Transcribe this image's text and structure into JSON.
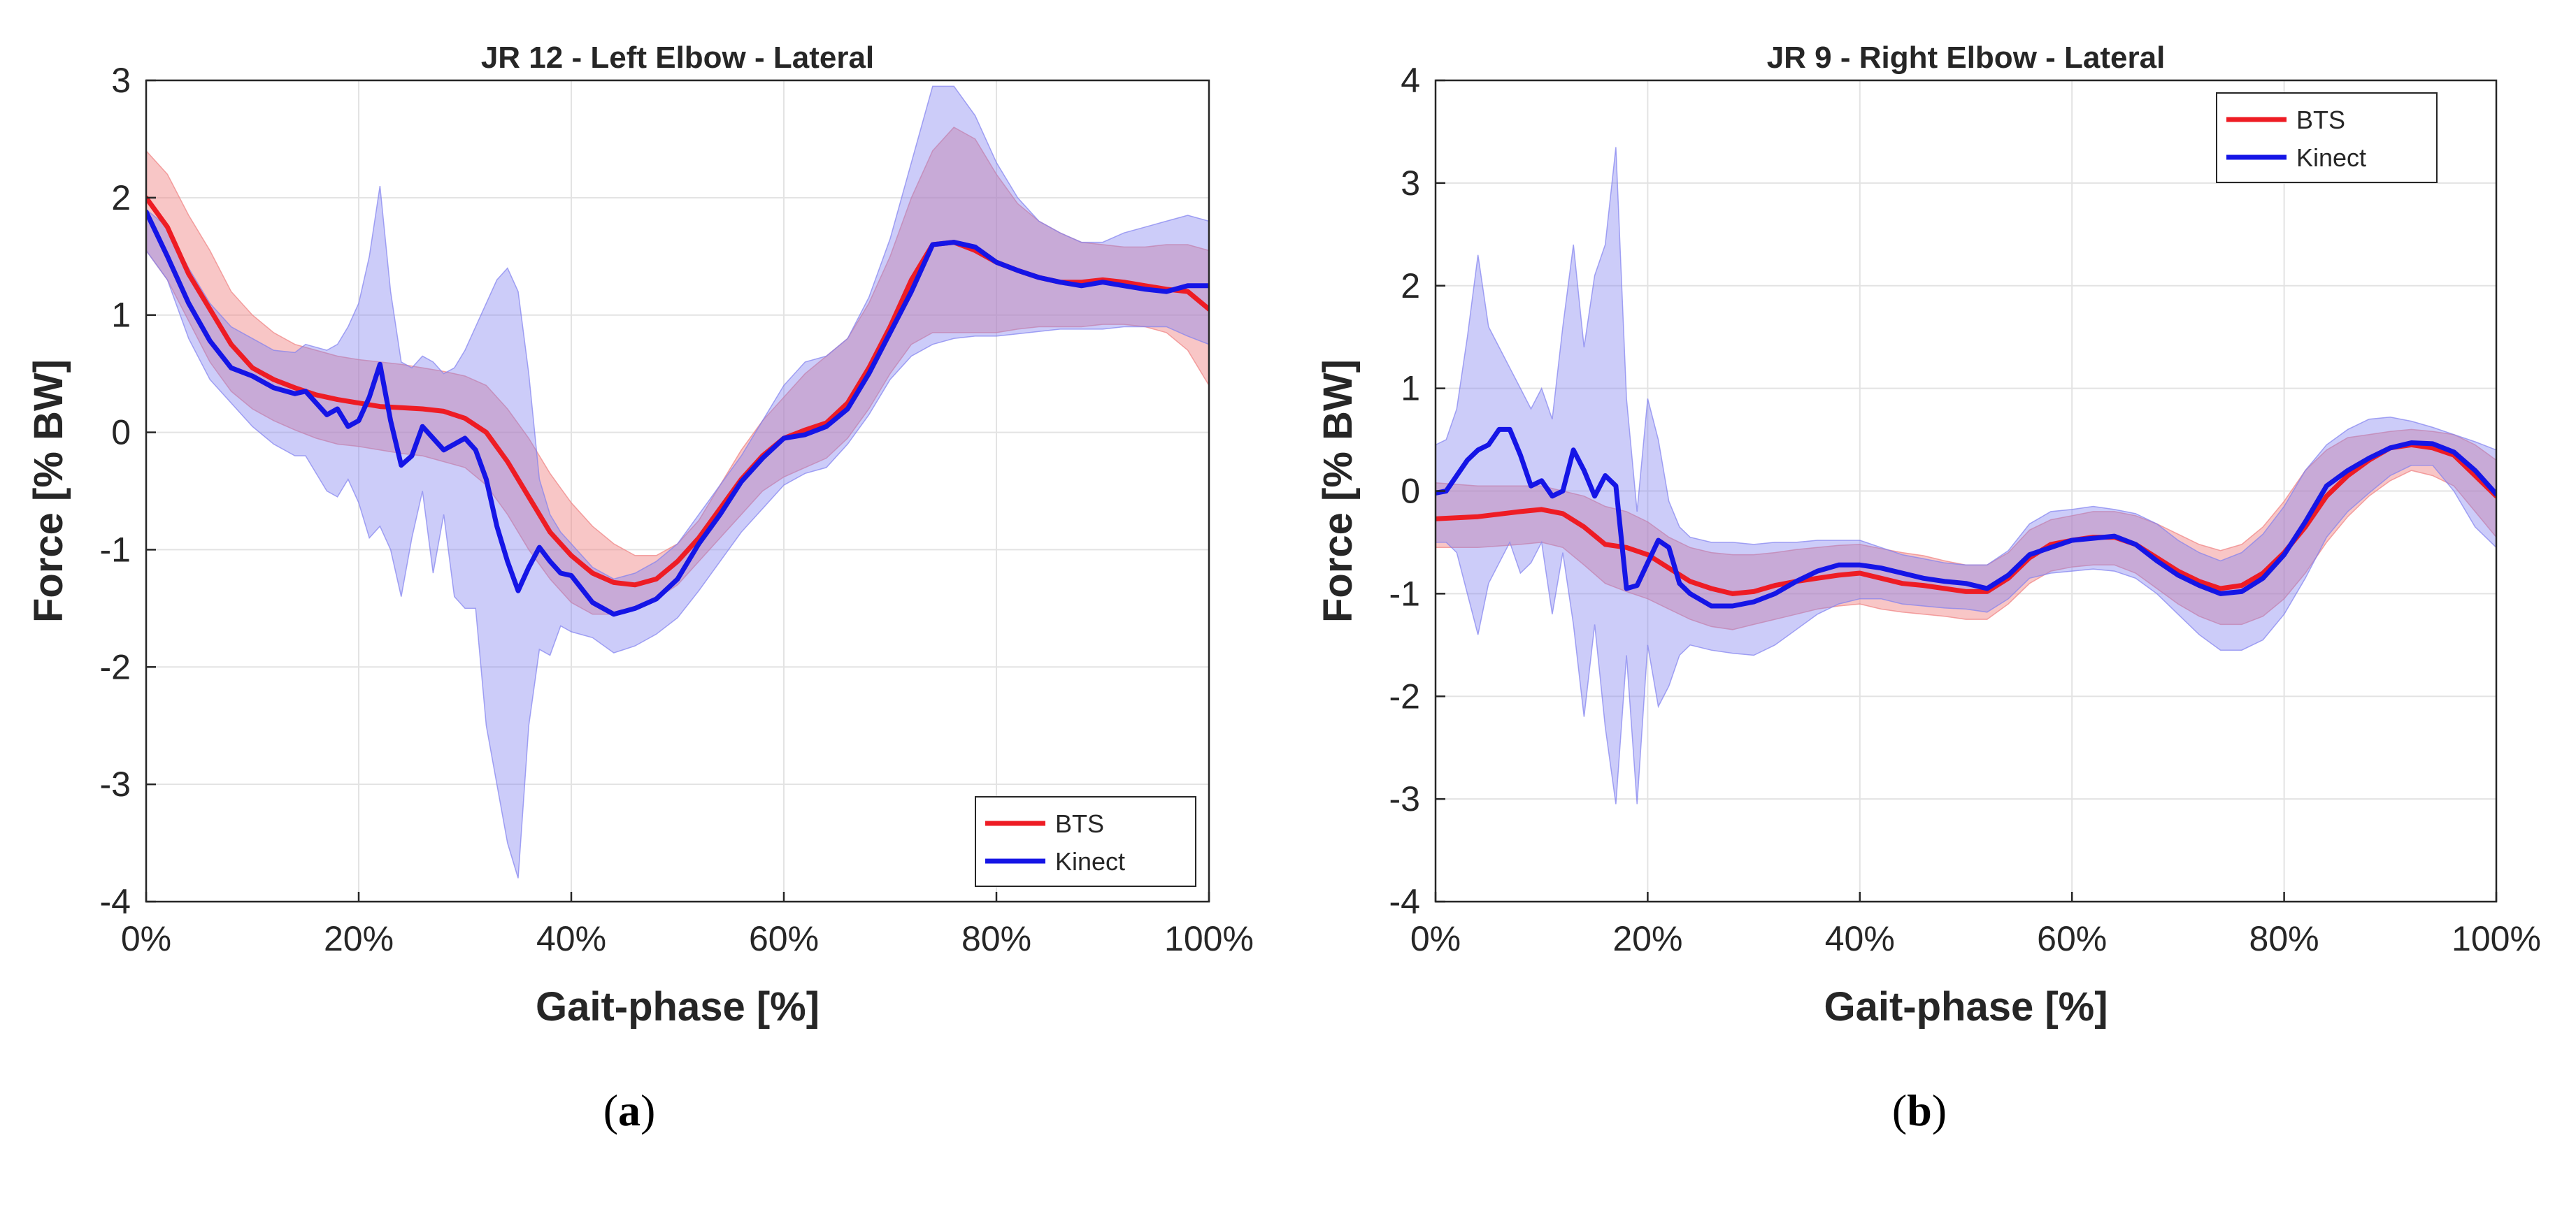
{
  "chart_data": [
    {
      "type": "line",
      "title": "JR 12 - Left Elbow - Lateral",
      "xlabel": "Gait-phase [%]",
      "ylabel": "Force [% BW]",
      "xlim": [
        0,
        100
      ],
      "ylim": [
        -4,
        3
      ],
      "xticks": [
        0,
        20,
        40,
        60,
        80,
        100
      ],
      "xtick_labels": [
        "0%",
        "20%",
        "40%",
        "60%",
        "80%",
        "100%"
      ],
      "yticks": [
        -4,
        -3,
        -2,
        -1,
        0,
        1,
        2,
        3
      ],
      "ytick_labels": [
        "-4",
        "-3",
        "-2",
        "-1",
        "0",
        "1",
        "2",
        "3"
      ],
      "grid": true,
      "legend_position": "bottom-right",
      "caption_prefix": "(",
      "caption_letter": "a",
      "caption_suffix": ")",
      "series": [
        {
          "name": "BTS",
          "color": "#ee1c24",
          "band_color": "#f08080",
          "x": [
            0,
            2,
            4,
            6,
            8,
            10,
            12,
            14,
            16,
            18,
            20,
            22,
            24,
            26,
            28,
            30,
            32,
            34,
            36,
            38,
            40,
            42,
            44,
            46,
            48,
            50,
            52,
            54,
            56,
            58,
            60,
            62,
            64,
            66,
            68,
            70,
            72,
            74,
            76,
            78,
            80,
            82,
            84,
            86,
            88,
            90,
            92,
            94,
            96,
            98,
            100
          ],
          "values": [
            2.0,
            1.75,
            1.35,
            1.05,
            0.75,
            0.55,
            0.45,
            0.38,
            0.32,
            0.28,
            0.25,
            0.22,
            0.21,
            0.2,
            0.18,
            0.12,
            0.0,
            -0.25,
            -0.55,
            -0.85,
            -1.05,
            -1.2,
            -1.28,
            -1.3,
            -1.25,
            -1.1,
            -0.9,
            -0.65,
            -0.4,
            -0.2,
            -0.05,
            0.02,
            0.08,
            0.25,
            0.55,
            0.9,
            1.3,
            1.6,
            1.62,
            1.55,
            1.45,
            1.38,
            1.32,
            1.28,
            1.28,
            1.3,
            1.28,
            1.25,
            1.22,
            1.2,
            1.05
          ],
          "upper": [
            2.4,
            2.2,
            1.85,
            1.55,
            1.2,
            1.0,
            0.85,
            0.75,
            0.7,
            0.65,
            0.62,
            0.6,
            0.58,
            0.55,
            0.52,
            0.48,
            0.4,
            0.2,
            -0.05,
            -0.35,
            -0.6,
            -0.8,
            -0.95,
            -1.05,
            -1.05,
            -0.95,
            -0.75,
            -0.45,
            -0.15,
            0.1,
            0.3,
            0.5,
            0.65,
            0.8,
            1.1,
            1.5,
            2.0,
            2.4,
            2.6,
            2.5,
            2.2,
            1.95,
            1.8,
            1.7,
            1.62,
            1.6,
            1.58,
            1.58,
            1.6,
            1.6,
            1.55
          ],
          "lower": [
            1.55,
            1.3,
            0.95,
            0.6,
            0.35,
            0.2,
            0.1,
            0.02,
            -0.05,
            -0.1,
            -0.12,
            -0.15,
            -0.18,
            -0.2,
            -0.25,
            -0.3,
            -0.45,
            -0.7,
            -1.0,
            -1.25,
            -1.45,
            -1.55,
            -1.55,
            -1.5,
            -1.42,
            -1.3,
            -1.1,
            -0.9,
            -0.7,
            -0.5,
            -0.38,
            -0.3,
            -0.22,
            -0.05,
            0.2,
            0.5,
            0.75,
            0.85,
            0.85,
            0.85,
            0.85,
            0.88,
            0.9,
            0.9,
            0.9,
            0.92,
            0.92,
            0.9,
            0.85,
            0.7,
            0.4
          ]
        },
        {
          "name": "Kinect",
          "color": "#1515e6",
          "band_color": "#8080f0",
          "x": [
            0,
            2,
            4,
            6,
            8,
            10,
            12,
            14,
            15,
            17,
            18,
            19,
            20,
            21,
            22,
            23,
            24,
            25,
            26,
            27,
            28,
            29,
            30,
            31,
            32,
            33,
            34,
            35,
            36,
            37,
            38,
            39,
            40,
            42,
            44,
            46,
            48,
            50,
            52,
            54,
            56,
            58,
            60,
            62,
            64,
            66,
            68,
            70,
            72,
            74,
            76,
            78,
            80,
            82,
            84,
            86,
            88,
            90,
            92,
            94,
            96,
            98,
            100
          ],
          "values": [
            1.88,
            1.5,
            1.1,
            0.78,
            0.55,
            0.48,
            0.38,
            0.33,
            0.35,
            0.15,
            0.2,
            0.05,
            0.1,
            0.3,
            0.58,
            0.1,
            -0.28,
            -0.2,
            0.05,
            -0.05,
            -0.15,
            -0.1,
            -0.05,
            -0.15,
            -0.4,
            -0.8,
            -1.1,
            -1.35,
            -1.15,
            -0.98,
            -1.1,
            -1.2,
            -1.22,
            -1.45,
            -1.55,
            -1.5,
            -1.42,
            -1.25,
            -0.95,
            -0.7,
            -0.42,
            -0.22,
            -0.05,
            -0.02,
            0.05,
            0.2,
            0.5,
            0.85,
            1.2,
            1.6,
            1.62,
            1.58,
            1.45,
            1.38,
            1.32,
            1.28,
            1.25,
            1.28,
            1.25,
            1.22,
            1.2,
            1.25,
            1.25
          ],
          "upper": [
            1.9,
            1.75,
            1.4,
            1.1,
            0.9,
            0.8,
            0.7,
            0.68,
            0.75,
            0.7,
            0.75,
            0.9,
            1.1,
            1.5,
            2.1,
            1.2,
            0.6,
            0.55,
            0.65,
            0.6,
            0.5,
            0.55,
            0.7,
            0.9,
            1.1,
            1.3,
            1.4,
            1.2,
            0.5,
            -0.4,
            -0.7,
            -0.85,
            -0.95,
            -1.15,
            -1.25,
            -1.2,
            -1.1,
            -0.95,
            -0.7,
            -0.45,
            -0.2,
            0.1,
            0.4,
            0.6,
            0.65,
            0.8,
            1.15,
            1.65,
            2.3,
            2.95,
            2.95,
            2.7,
            2.3,
            2.0,
            1.8,
            1.7,
            1.62,
            1.62,
            1.7,
            1.75,
            1.8,
            1.85,
            1.8
          ],
          "lower": [
            1.55,
            1.3,
            0.8,
            0.45,
            0.25,
            0.05,
            -0.1,
            -0.2,
            -0.2,
            -0.5,
            -0.55,
            -0.4,
            -0.6,
            -0.9,
            -0.8,
            -1.0,
            -1.4,
            -0.9,
            -0.5,
            -1.2,
            -0.7,
            -1.4,
            -1.5,
            -1.5,
            -2.5,
            -3.0,
            -3.5,
            -3.8,
            -2.5,
            -1.85,
            -1.9,
            -1.65,
            -1.7,
            -1.75,
            -1.88,
            -1.82,
            -1.72,
            -1.58,
            -1.35,
            -1.1,
            -0.85,
            -0.65,
            -0.45,
            -0.35,
            -0.3,
            -0.1,
            0.15,
            0.45,
            0.65,
            0.75,
            0.8,
            0.82,
            0.82,
            0.84,
            0.86,
            0.88,
            0.88,
            0.88,
            0.9,
            0.9,
            0.9,
            0.82,
            0.75
          ]
        }
      ]
    },
    {
      "type": "line",
      "title": "JR 9 - Right Elbow - Lateral",
      "xlabel": "Gait-phase [%]",
      "ylabel": "Force [% BW]",
      "xlim": [
        0,
        100
      ],
      "ylim": [
        -4,
        4
      ],
      "xticks": [
        0,
        20,
        40,
        60,
        80,
        100
      ],
      "xtick_labels": [
        "0%",
        "20%",
        "40%",
        "60%",
        "80%",
        "100%"
      ],
      "yticks": [
        -4,
        -3,
        -2,
        -1,
        0,
        1,
        2,
        3,
        4
      ],
      "ytick_labels": [
        "-4",
        "-3",
        "-2",
        "-1",
        "0",
        "1",
        "2",
        "3",
        "4"
      ],
      "grid": true,
      "legend_position": "top-right",
      "caption_prefix": "(",
      "caption_letter": "b",
      "caption_suffix": ")",
      "series": [
        {
          "name": "BTS",
          "color": "#ee1c24",
          "band_color": "#f08080",
          "x": [
            0,
            4,
            8,
            10,
            12,
            14,
            16,
            18,
            20,
            22,
            24,
            26,
            28,
            30,
            32,
            34,
            36,
            38,
            40,
            42,
            44,
            46,
            48,
            50,
            52,
            54,
            56,
            58,
            60,
            62,
            64,
            66,
            68,
            70,
            72,
            74,
            76,
            78,
            80,
            82,
            84,
            86,
            88,
            90,
            92,
            94,
            96,
            98,
            100
          ],
          "values": [
            -0.27,
            -0.25,
            -0.2,
            -0.18,
            -0.22,
            -0.35,
            -0.52,
            -0.55,
            -0.62,
            -0.75,
            -0.88,
            -0.95,
            -1.0,
            -0.98,
            -0.92,
            -0.88,
            -0.85,
            -0.82,
            -0.8,
            -0.85,
            -0.9,
            -0.92,
            -0.95,
            -0.98,
            -0.98,
            -0.85,
            -0.65,
            -0.52,
            -0.48,
            -0.45,
            -0.45,
            -0.52,
            -0.65,
            -0.78,
            -0.88,
            -0.95,
            -0.92,
            -0.8,
            -0.6,
            -0.35,
            -0.05,
            0.15,
            0.3,
            0.42,
            0.45,
            0.42,
            0.35,
            0.15,
            -0.05
          ],
          "upper": [
            0.08,
            0.05,
            0.05,
            0.05,
            0.0,
            -0.05,
            -0.15,
            -0.2,
            -0.3,
            -0.45,
            -0.55,
            -0.6,
            -0.62,
            -0.62,
            -0.6,
            -0.57,
            -0.55,
            -0.53,
            -0.52,
            -0.56,
            -0.6,
            -0.63,
            -0.68,
            -0.72,
            -0.72,
            -0.6,
            -0.38,
            -0.28,
            -0.24,
            -0.2,
            -0.2,
            -0.24,
            -0.32,
            -0.42,
            -0.52,
            -0.58,
            -0.52,
            -0.35,
            -0.1,
            0.2,
            0.4,
            0.52,
            0.55,
            0.58,
            0.6,
            0.58,
            0.55,
            0.45,
            0.3
          ],
          "lower": [
            -0.55,
            -0.55,
            -0.52,
            -0.5,
            -0.55,
            -0.72,
            -0.9,
            -0.98,
            -1.05,
            -1.15,
            -1.25,
            -1.32,
            -1.35,
            -1.3,
            -1.25,
            -1.2,
            -1.15,
            -1.12,
            -1.1,
            -1.15,
            -1.18,
            -1.2,
            -1.22,
            -1.25,
            -1.25,
            -1.1,
            -0.9,
            -0.78,
            -0.74,
            -0.72,
            -0.72,
            -0.8,
            -0.95,
            -1.1,
            -1.22,
            -1.3,
            -1.3,
            -1.22,
            -1.05,
            -0.8,
            -0.5,
            -0.25,
            -0.05,
            0.1,
            0.2,
            0.15,
            0.05,
            -0.2,
            -0.45
          ]
        },
        {
          "name": "Kinect",
          "color": "#1515e6",
          "band_color": "#8080f0",
          "x": [
            0,
            1,
            2,
            3,
            4,
            5,
            6,
            7,
            8,
            9,
            10,
            11,
            12,
            13,
            14,
            15,
            16,
            17,
            18,
            19,
            20,
            21,
            22,
            23,
            24,
            26,
            28,
            30,
            32,
            34,
            36,
            38,
            40,
            42,
            44,
            46,
            48,
            50,
            52,
            54,
            56,
            58,
            60,
            62,
            64,
            66,
            68,
            70,
            72,
            74,
            76,
            78,
            80,
            82,
            84,
            86,
            88,
            90,
            92,
            94,
            96,
            98,
            100
          ],
          "values": [
            -0.02,
            0.0,
            0.15,
            0.3,
            0.4,
            0.45,
            0.6,
            0.6,
            0.35,
            0.05,
            0.1,
            -0.05,
            0.0,
            0.4,
            0.2,
            -0.05,
            0.15,
            0.05,
            -0.95,
            -0.92,
            -0.7,
            -0.48,
            -0.55,
            -0.9,
            -1.0,
            -1.12,
            -1.12,
            -1.08,
            -1.0,
            -0.88,
            -0.78,
            -0.72,
            -0.72,
            -0.75,
            -0.8,
            -0.85,
            -0.88,
            -0.9,
            -0.95,
            -0.82,
            -0.62,
            -0.55,
            -0.48,
            -0.46,
            -0.44,
            -0.52,
            -0.68,
            -0.82,
            -0.92,
            -1.0,
            -0.98,
            -0.85,
            -0.62,
            -0.3,
            0.05,
            0.2,
            0.32,
            0.42,
            0.47,
            0.46,
            0.38,
            0.2,
            -0.03
          ],
          "upper": [
            0.45,
            0.5,
            0.8,
            1.5,
            2.3,
            1.6,
            1.4,
            1.2,
            1.0,
            0.8,
            1.0,
            0.7,
            1.6,
            2.4,
            1.4,
            2.1,
            2.4,
            3.35,
            0.9,
            -0.2,
            0.9,
            0.5,
            -0.1,
            -0.35,
            -0.45,
            -0.5,
            -0.5,
            -0.52,
            -0.5,
            -0.5,
            -0.48,
            -0.48,
            -0.48,
            -0.55,
            -0.62,
            -0.66,
            -0.7,
            -0.72,
            -0.72,
            -0.58,
            -0.32,
            -0.2,
            -0.18,
            -0.15,
            -0.18,
            -0.22,
            -0.32,
            -0.48,
            -0.6,
            -0.68,
            -0.6,
            -0.42,
            -0.15,
            0.2,
            0.45,
            0.6,
            0.7,
            0.72,
            0.68,
            0.62,
            0.55,
            0.48,
            0.4
          ],
          "lower": [
            -0.5,
            -0.5,
            -0.6,
            -1.0,
            -1.4,
            -0.9,
            -0.7,
            -0.5,
            -0.8,
            -0.7,
            -0.5,
            -1.2,
            -0.6,
            -1.3,
            -2.2,
            -1.3,
            -2.3,
            -3.05,
            -1.6,
            -3.05,
            -1.5,
            -2.1,
            -1.9,
            -1.6,
            -1.5,
            -1.55,
            -1.58,
            -1.6,
            -1.5,
            -1.35,
            -1.2,
            -1.1,
            -1.05,
            -1.05,
            -1.1,
            -1.12,
            -1.14,
            -1.15,
            -1.18,
            -1.05,
            -0.85,
            -0.8,
            -0.78,
            -0.76,
            -0.78,
            -0.85,
            -1.0,
            -1.2,
            -1.4,
            -1.55,
            -1.55,
            -1.45,
            -1.2,
            -0.85,
            -0.45,
            -0.2,
            -0.02,
            0.15,
            0.25,
            0.25,
            0.0,
            -0.35,
            -0.55
          ]
        }
      ]
    }
  ]
}
